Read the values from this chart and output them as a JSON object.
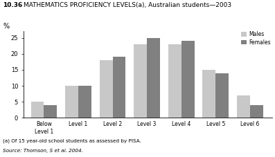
{
  "title_num": "10.36",
  "title_text": "  MATHEMATICS PROFICIENCY LEVELS(a), Australian students—2003",
  "categories": [
    "Below\nLevel 1",
    "Level 1",
    "Level 2",
    "Level 3",
    "Level 4",
    "Level 5",
    "Level 6"
  ],
  "males": [
    5,
    10,
    18,
    23,
    23,
    15,
    7
  ],
  "females": [
    4,
    10,
    19,
    25,
    24,
    14,
    4
  ],
  "males_color": "#c8c8c8",
  "females_color": "#808080",
  "ylabel": "%",
  "ylim": [
    0,
    27
  ],
  "yticks": [
    0,
    5,
    10,
    15,
    20,
    25
  ],
  "footnote1": "(a) Of 15 year-old school students as assessed by PISA.",
  "footnote2": "Source: Thomson, S et al. 2004.",
  "bar_width": 0.38,
  "legend_labels": [
    "Males",
    "Females"
  ],
  "background_color": "#ffffff"
}
